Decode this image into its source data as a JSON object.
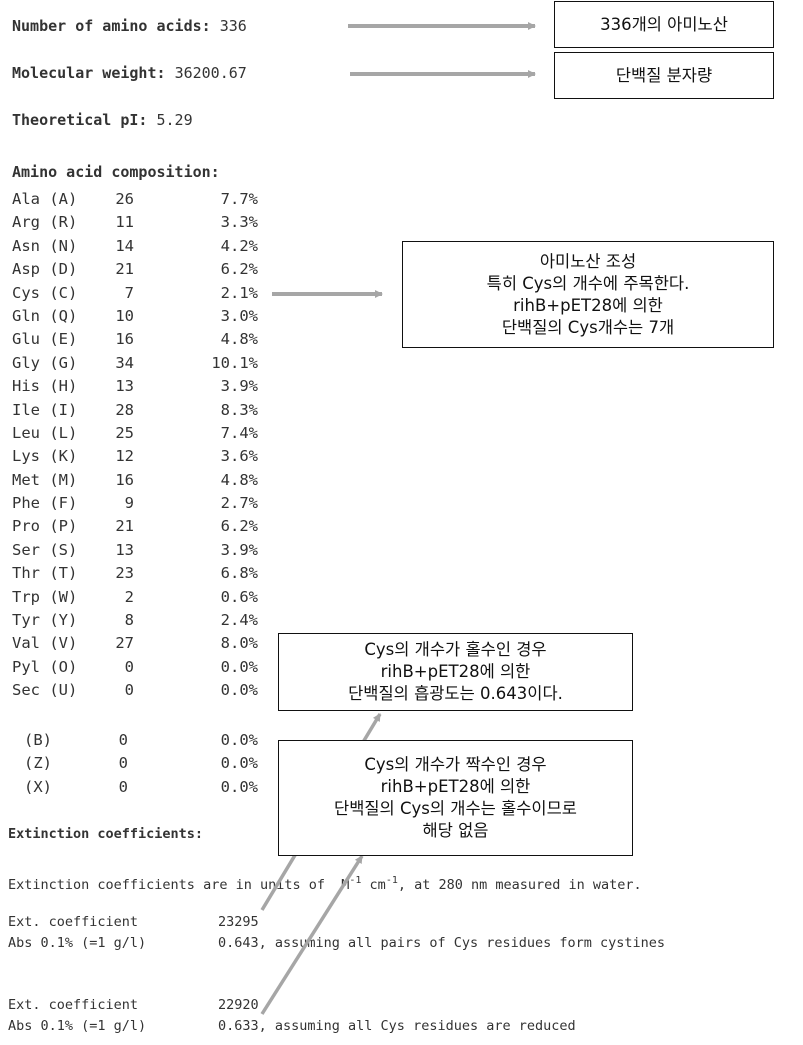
{
  "header": {
    "num_aa_label": "Number of amino acids:",
    "num_aa_value": "336",
    "mw_label": "Molecular weight:",
    "mw_value": "36200.67",
    "pi_label": "Theoretical pI:",
    "pi_value": "5.29"
  },
  "composition": {
    "title": "Amino acid composition:",
    "rows": [
      {
        "name": "Ala (A)",
        "count": "26",
        "pct": "7.7%"
      },
      {
        "name": "Arg (R)",
        "count": "11",
        "pct": "3.3%"
      },
      {
        "name": "Asn (N)",
        "count": "14",
        "pct": "4.2%"
      },
      {
        "name": "Asp (D)",
        "count": "21",
        "pct": "6.2%"
      },
      {
        "name": "Cys (C)",
        "count": "7",
        "pct": "2.1%"
      },
      {
        "name": "Gln (Q)",
        "count": "10",
        "pct": "3.0%"
      },
      {
        "name": "Glu (E)",
        "count": "16",
        "pct": "4.8%"
      },
      {
        "name": "Gly (G)",
        "count": "34",
        "pct": "10.1%"
      },
      {
        "name": "His (H)",
        "count": "13",
        "pct": "3.9%"
      },
      {
        "name": "Ile (I)",
        "count": "28",
        "pct": "8.3%"
      },
      {
        "name": "Leu (L)",
        "count": "25",
        "pct": "7.4%"
      },
      {
        "name": "Lys (K)",
        "count": "12",
        "pct": "3.6%"
      },
      {
        "name": "Met (M)",
        "count": "16",
        "pct": "4.8%"
      },
      {
        "name": "Phe (F)",
        "count": "9",
        "pct": "2.7%"
      },
      {
        "name": "Pro (P)",
        "count": "21",
        "pct": "6.2%"
      },
      {
        "name": "Ser (S)",
        "count": "13",
        "pct": "3.9%"
      },
      {
        "name": "Thr (T)",
        "count": "23",
        "pct": "6.8%"
      },
      {
        "name": "Trp (W)",
        "count": "2",
        "pct": "0.6%"
      },
      {
        "name": "Tyr (Y)",
        "count": "8",
        "pct": "2.4%"
      },
      {
        "name": "Val (V)",
        "count": "27",
        "pct": "8.0%"
      },
      {
        "name": "Pyl (O)",
        "count": "0",
        "pct": "0.0%"
      },
      {
        "name": "Sec (U)",
        "count": "0",
        "pct": "0.0%"
      }
    ],
    "extra_rows": [
      {
        "name": "(B)",
        "count": "0",
        "pct": "0.0%"
      },
      {
        "name": "(Z)",
        "count": "0",
        "pct": "0.0%"
      },
      {
        "name": "(X)",
        "count": "0",
        "pct": "0.0%"
      }
    ]
  },
  "extinction": {
    "title": "Extinction coefficients:",
    "units_pre": "Extinction coefficients are in units of  M",
    "units_sup1": "-1",
    "units_mid": " cm",
    "units_sup2": "-1",
    "units_post": ", at 280 nm measured in water.",
    "block1_ext_label": "Ext. coefficient",
    "block1_ext_value": "23295",
    "block1_abs_label": "Abs 0.1% (=1 g/l)",
    "block1_abs_value": "0.643, assuming all pairs of Cys residues form cystines",
    "block2_ext_label": "Ext. coefficient",
    "block2_ext_value": "22920",
    "block2_abs_label": "Abs 0.1% (=1 g/l)",
    "block2_abs_value": "0.633, assuming all Cys residues are reduced"
  },
  "annotations": {
    "box1": "336개의 아미노산",
    "box2": "단백질 분자량",
    "box3": [
      "아미노산 조성",
      "특히 Cys의 개수에 주목한다.",
      "rihB+pET28에 의한",
      "단백질의 Cys개수는 7개"
    ],
    "box4": [
      "Cys의 개수가 홀수인 경우",
      "rihB+pET28에 의한",
      "단백질의 흡광도는 0.643이다."
    ],
    "box5": [
      "Cys의 개수가 짝수인 경우",
      "rihB+pET28에 의한",
      "단백질의 Cys의 개수는 홀수이므로",
      "해당 없음"
    ]
  },
  "colors": {
    "arrow": "#a6a6a6",
    "text": "#333333",
    "box_border": "#111111"
  }
}
